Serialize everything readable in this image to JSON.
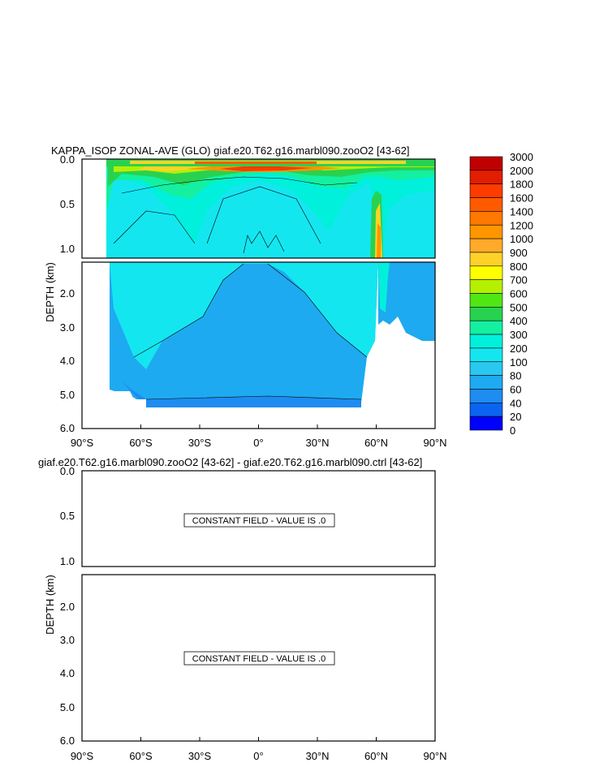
{
  "colors": {
    "levels": [
      "#707070",
      "#c0c0c0",
      "#e000e0",
      "#9000d0",
      "#0000ff",
      "#0a64f0",
      "#1e8cf0",
      "#1eaaf0",
      "#28c8f0",
      "#14e6f0",
      "#00f0dc",
      "#14f0a0",
      "#28d250",
      "#50e614",
      "#b4f000",
      "#ffff00",
      "#ffd228",
      "#ffaa28",
      "#ff9600",
      "#ff7800",
      "#ff5a00",
      "#ff3c00",
      "#e11e00",
      "#c00000"
    ]
  },
  "chart_data": [
    {
      "type": "contour",
      "title": "KAPPA_ISOP ZONAL-AVE (GLO) giaf.e20.T62.g16.marbl090.zooO2 [43-62]",
      "ylabel": "DEPTH (km)",
      "xlabel": "",
      "x_ticks": [
        "90°S",
        "60°S",
        "30°S",
        "0°",
        "30°N",
        "60°N",
        "90°N"
      ],
      "y_ticks_upper": [
        "0.0",
        "0.5",
        "1.0"
      ],
      "y_ticks_lower": [
        "2.0",
        "3.0",
        "4.0",
        "5.0",
        "6.0"
      ],
      "xlim": [
        -90,
        90
      ],
      "ylim_upper": [
        0,
        1.1
      ],
      "ylim_lower": [
        1.1,
        6.0
      ],
      "colorbar_levels": [
        "3000",
        "2000",
        "1800",
        "1600",
        "1400",
        "1200",
        "1000",
        "900",
        "800",
        "700",
        "600",
        "500",
        "400",
        "300",
        "200",
        "100",
        "80",
        "60",
        "40",
        "20",
        "0"
      ],
      "regions": [
        {
          "lat": [
            -75,
            55
          ],
          "depth_km": [
            4.0,
            5.3
          ],
          "value_range": "200-300"
        },
        {
          "lat": [
            -55,
            40
          ],
          "depth_km": [
            1.2,
            4.5
          ],
          "value_range": "300-400"
        },
        {
          "lat": [
            -60,
            30
          ],
          "depth_km": [
            0.1,
            0.6
          ],
          "value_range": "400-800"
        },
        {
          "lat": [
            -20,
            20
          ],
          "depth_km": [
            0.0,
            0.15
          ],
          "value_range": "1400-2000"
        },
        {
          "lat": [
            60,
            68
          ],
          "depth_km": [
            0.4,
            1.5
          ],
          "value_range": "900-1400"
        }
      ]
    },
    {
      "type": "contour",
      "title": "giaf.e20.T62.g16.marbl090.zooO2 [43-62] - giaf.e20.T62.g16.marbl090.ctrl [43-62]",
      "ylabel": "DEPTH (km)",
      "xlabel": "",
      "x_ticks": [
        "90°S",
        "60°S",
        "30°S",
        "0°",
        "30°N",
        "60°N",
        "90°N"
      ],
      "y_ticks_upper": [
        "0.0",
        "0.5",
        "1.0"
      ],
      "y_ticks_lower": [
        "2.0",
        "3.0",
        "4.0",
        "5.0",
        "6.0"
      ],
      "xlim": [
        -90,
        90
      ],
      "annotation_upper": "CONSTANT FIELD - VALUE IS .0",
      "annotation_lower": "CONSTANT FIELD - VALUE IS .0"
    }
  ]
}
